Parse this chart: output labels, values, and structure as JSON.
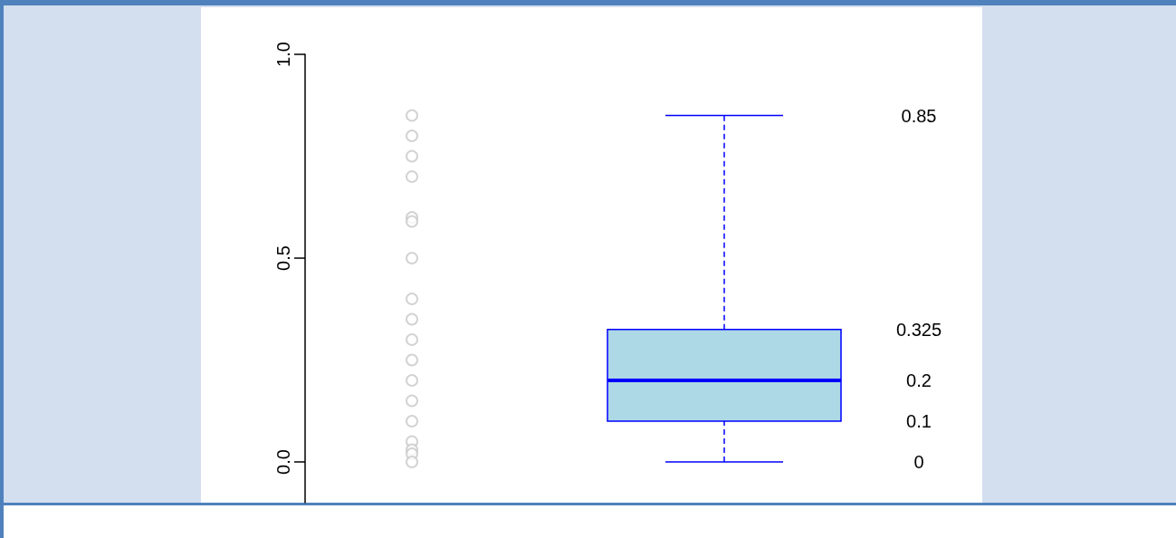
{
  "chart_data": {
    "type": "box",
    "categories": [
      null,
      null
    ],
    "series": [
      {
        "type": "scatter",
        "color": "#c8c8c8",
        "x": [
          null,
          null,
          null,
          null,
          null,
          null,
          null,
          null,
          null,
          null,
          null,
          null,
          null,
          null,
          null,
          null,
          null,
          null
        ],
        "values": [
          0.85,
          0.8,
          0.75,
          0.7,
          0.6,
          0.59,
          0.5,
          0.4,
          0.35,
          0.3,
          0.25,
          0.2,
          0.15,
          0.1,
          0.05,
          0.03,
          0.02,
          0
        ]
      },
      {
        "color": "#add8e6",
        "boxes": [
          null,
          {
            "low": 0,
            "q1": 0.1,
            "median": 0.2,
            "q3": 0.325,
            "high": 0.85
          }
        ]
      }
    ],
    "annotations": [
      "0.85",
      "0.325",
      "0.2",
      "0.1",
      "0"
    ],
    "ylim": [
      -0.1,
      1.0
    ],
    "yticks": [
      {
        "value": 0,
        "label": "0.0"
      },
      {
        "value": 0.5,
        "label": "0.5"
      },
      {
        "value": 1,
        "label": "1.0"
      }
    ],
    "tick_labels": "y",
    "marker": "circle",
    "grid": false
  }
}
